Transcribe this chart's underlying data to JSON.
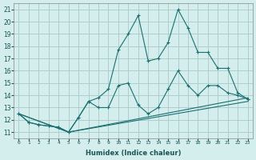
{
  "xlabel": "Humidex (Indice chaleur)",
  "ylabel": "",
  "xlim": [
    -0.5,
    23.5
  ],
  "ylim": [
    10.5,
    21.5
  ],
  "yticks": [
    11,
    12,
    13,
    14,
    15,
    16,
    17,
    18,
    19,
    20,
    21
  ],
  "xticks": [
    0,
    1,
    2,
    3,
    4,
    5,
    6,
    7,
    8,
    9,
    10,
    11,
    12,
    13,
    14,
    15,
    16,
    17,
    18,
    19,
    20,
    21,
    22,
    23
  ],
  "bg_color": "#d4eded",
  "grid_color": "#b0cece",
  "line_color": "#1a7070",
  "line1": {
    "x": [
      0,
      1,
      2,
      3,
      4,
      5,
      6,
      7,
      8,
      9,
      10,
      11,
      12,
      13,
      14,
      15,
      16,
      17,
      18,
      19,
      20,
      21,
      22,
      23
    ],
    "y": [
      12.5,
      11.8,
      11.6,
      11.5,
      11.4,
      11.0,
      12.2,
      13.5,
      13.8,
      14.5,
      17.7,
      19.0,
      20.5,
      16.8,
      17.0,
      18.3,
      21.0,
      19.5,
      17.5,
      17.5,
      16.2,
      16.2,
      14.2,
      13.7
    ]
  },
  "line2": {
    "x": [
      0,
      1,
      2,
      3,
      4,
      5,
      6,
      7,
      8,
      9,
      10,
      11,
      12,
      13,
      14,
      15,
      16,
      17,
      18,
      19,
      20,
      21,
      22,
      23
    ],
    "y": [
      12.5,
      11.8,
      11.6,
      11.5,
      11.4,
      11.0,
      12.2,
      13.5,
      13.0,
      13.0,
      14.8,
      15.0,
      13.2,
      12.5,
      13.0,
      14.5,
      16.0,
      14.8,
      14.0,
      14.8,
      14.8,
      14.2,
      14.0,
      13.7
    ]
  },
  "line3": {
    "x": [
      0,
      5,
      23
    ],
    "y": [
      12.5,
      11.0,
      13.5
    ]
  },
  "line4": {
    "x": [
      0,
      5,
      23
    ],
    "y": [
      12.5,
      11.0,
      13.8
    ]
  }
}
